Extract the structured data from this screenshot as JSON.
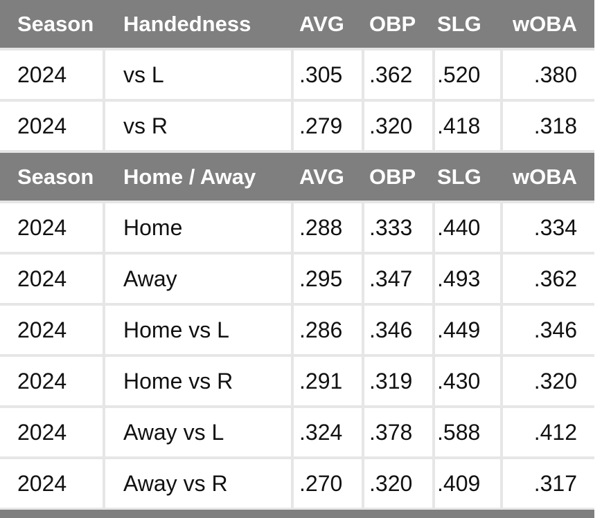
{
  "sections": [
    {
      "header": [
        "Season",
        "Handedness",
        "AVG",
        "OBP",
        "SLG",
        "wOBA"
      ],
      "rows": [
        [
          "2024",
          "vs L",
          ".305",
          ".362",
          ".520",
          ".380"
        ],
        [
          "2024",
          "vs R",
          ".279",
          ".320",
          ".418",
          ".318"
        ]
      ]
    },
    {
      "header": [
        "Season",
        "Home / Away",
        "AVG",
        "OBP",
        "SLG",
        "wOBA"
      ],
      "rows": [
        [
          "2024",
          "Home",
          ".288",
          ".333",
          ".440",
          ".334"
        ],
        [
          "2024",
          "Away",
          ".295",
          ".347",
          ".493",
          ".362"
        ],
        [
          "2024",
          "Home vs L",
          ".286",
          ".346",
          ".449",
          ".346"
        ],
        [
          "2024",
          "Home vs R",
          ".291",
          ".319",
          ".430",
          ".320"
        ],
        [
          "2024",
          "Away vs L",
          ".324",
          ".378",
          ".588",
          ".412"
        ],
        [
          "2024",
          "Away vs R",
          ".270",
          ".320",
          ".409",
          ".317"
        ]
      ]
    }
  ]
}
